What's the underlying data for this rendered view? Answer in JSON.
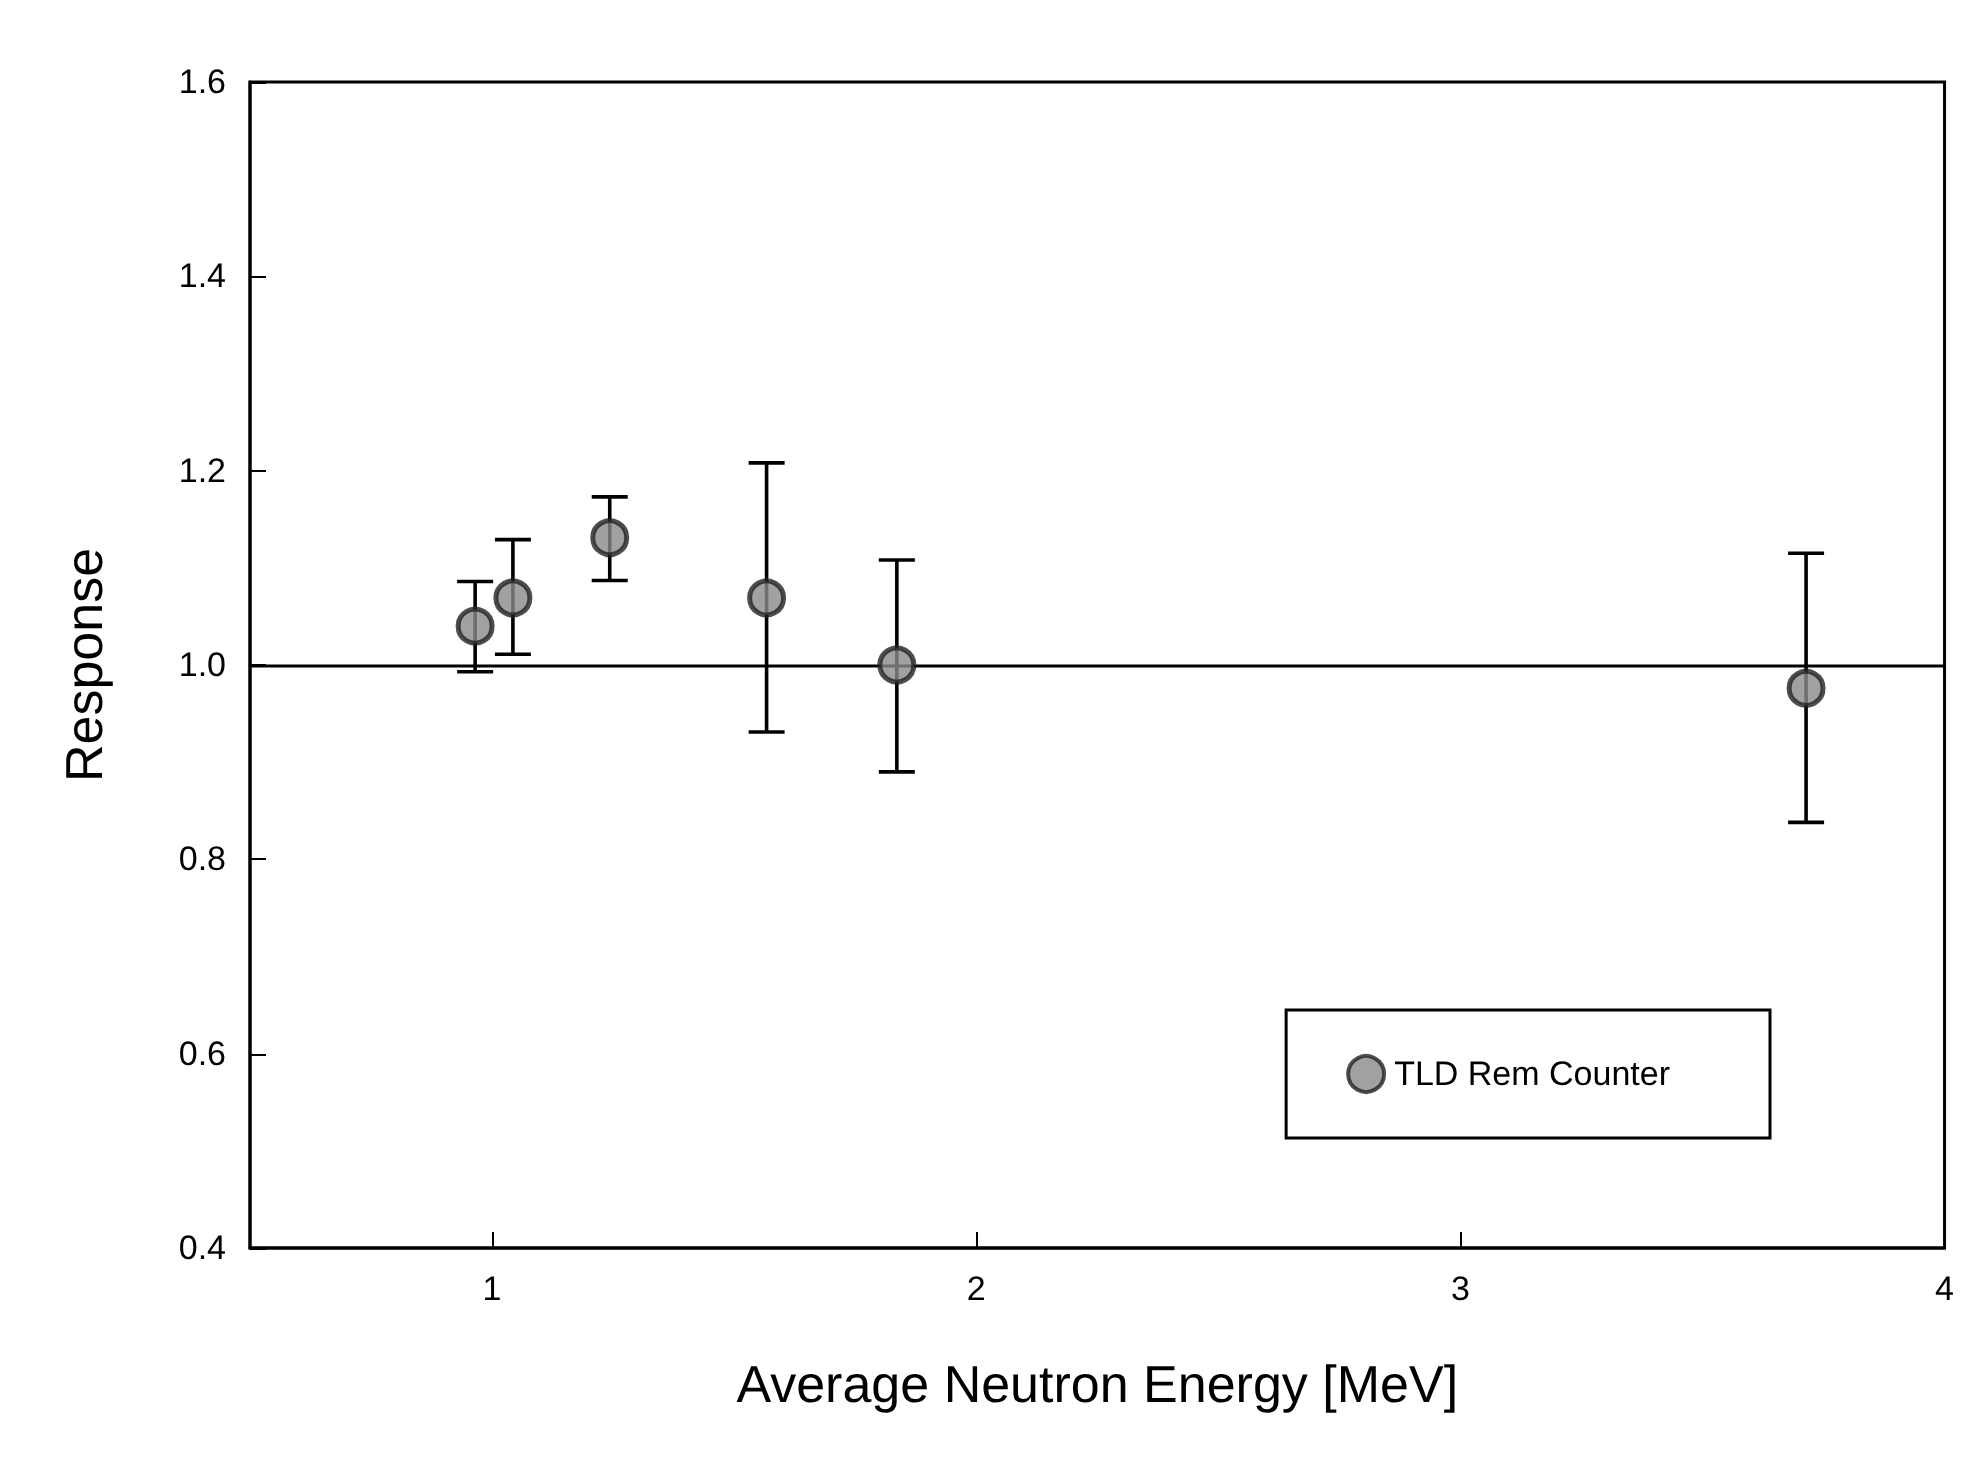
{
  "chart_data": {
    "type": "scatter",
    "xlabel": "Average Neutron Energy [MeV]",
    "ylabel": "Response",
    "x": [
      0.965,
      1.043,
      1.243,
      1.567,
      1.836,
      3.714
    ],
    "series": [
      {
        "name": "TLD Rem Counter",
        "color": "#8a8a8a",
        "values": [
          1.04,
          1.069,
          1.131,
          1.069,
          1.0,
          0.976
        ],
        "errors": [
          [
            0.993,
            1.086
          ],
          [
            1.011,
            1.129
          ],
          [
            1.087,
            1.173
          ],
          [
            0.931,
            1.208
          ],
          [
            0.89,
            1.108
          ],
          [
            0.838,
            1.115
          ]
        ]
      }
    ],
    "xlim": [
      0.5,
      4
    ],
    "xticks": [
      1,
      2,
      3,
      4
    ],
    "ylim": [
      0.4,
      1.6
    ],
    "yticks": [
      0.4,
      0.6,
      0.8,
      {
        "value": 1,
        "label": "1.0"
      },
      1.2,
      1.4,
      1.6
    ],
    "ref_lines": [
      {
        "axis": "y",
        "value": 1.0,
        "color": "#000000",
        "line_style": "solid"
      }
    ],
    "grid": false,
    "legend": "bottom right",
    "marker": "circle"
  }
}
